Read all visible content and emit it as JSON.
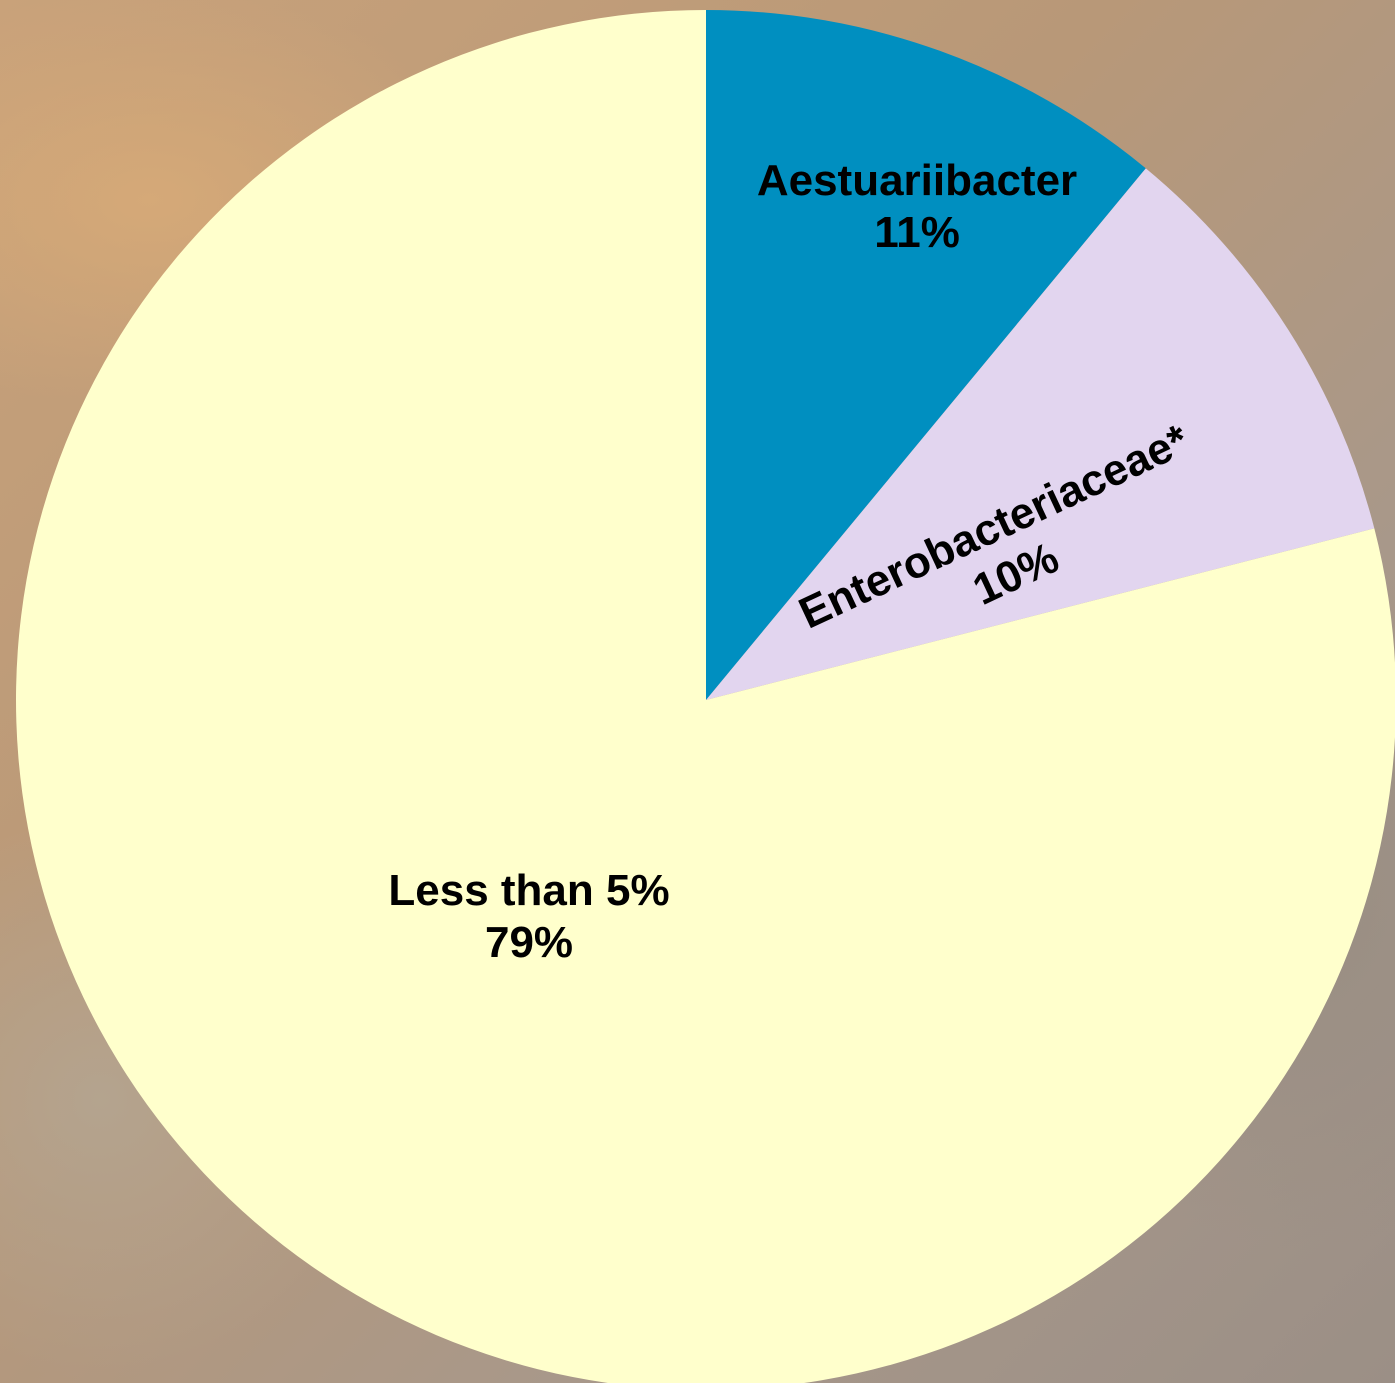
{
  "chart_data": {
    "type": "pie",
    "categories": [
      "Aestuariibacter",
      "Enterobacteriaceae*",
      "Less than 5%"
    ],
    "values": [
      11,
      10,
      79
    ],
    "value_labels": [
      "11%",
      "10%",
      "79%"
    ],
    "colors": [
      "#008fc0",
      "#e2d5ef",
      "#ffffcc"
    ]
  }
}
